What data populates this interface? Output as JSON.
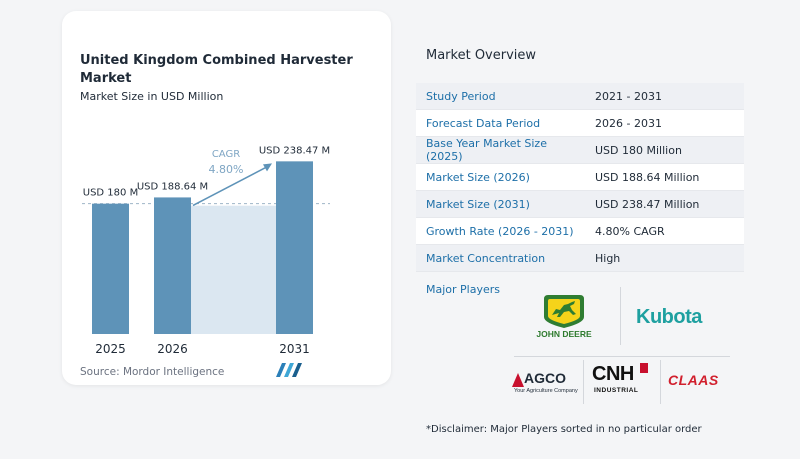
{
  "chart": {
    "title": "United Kingdom Combined Harvester Market",
    "subtitle": "Market Size in USD Million",
    "source": "Source:  Mordor Intelligence",
    "cagr_label": "CAGR",
    "cagr_value": "4.80%"
  },
  "chart_data": {
    "type": "bar",
    "categories": [
      "2025",
      "2026",
      "2031"
    ],
    "values": [
      180,
      188.64,
      238.47
    ],
    "data_labels": [
      "USD 180 M",
      "USD 188.64 M",
      "USD 238.47 M"
    ],
    "ylim": [
      0,
      250
    ],
    "colors": {
      "bar": "#5e93b8",
      "highlight_region": "#dbe7f1",
      "arrow": "#5e93b8",
      "cagr": "#7fa6c4"
    }
  },
  "overview": {
    "title": "Market Overview",
    "rows": [
      {
        "key": "Study Period",
        "value": "2021 - 2031"
      },
      {
        "key": "Forecast Data Period",
        "value": "2026 - 2031"
      },
      {
        "key": "Base Year Market Size (2025)",
        "value": "USD 180 Million"
      },
      {
        "key": "Market Size (2026)",
        "value": "USD 188.64 Million"
      },
      {
        "key": "Market Size (2031)",
        "value": "USD 238.47 Million"
      },
      {
        "key": "Growth Rate (2026 - 2031)",
        "value": "4.80% CAGR"
      },
      {
        "key": "Market Concentration",
        "value": "High"
      }
    ],
    "players_label": "Major Players",
    "players": {
      "deere": "JOHN DEERE",
      "kubota": "Kubota",
      "agco": "AGCO",
      "agco_tagline": "Your Agriculture Company",
      "cnh": "CNH",
      "cnh_sub": "INDUSTRIAL",
      "claas": "CLAAS"
    },
    "disclaimer": "*Disclaimer: Major Players sorted in no particular order"
  }
}
